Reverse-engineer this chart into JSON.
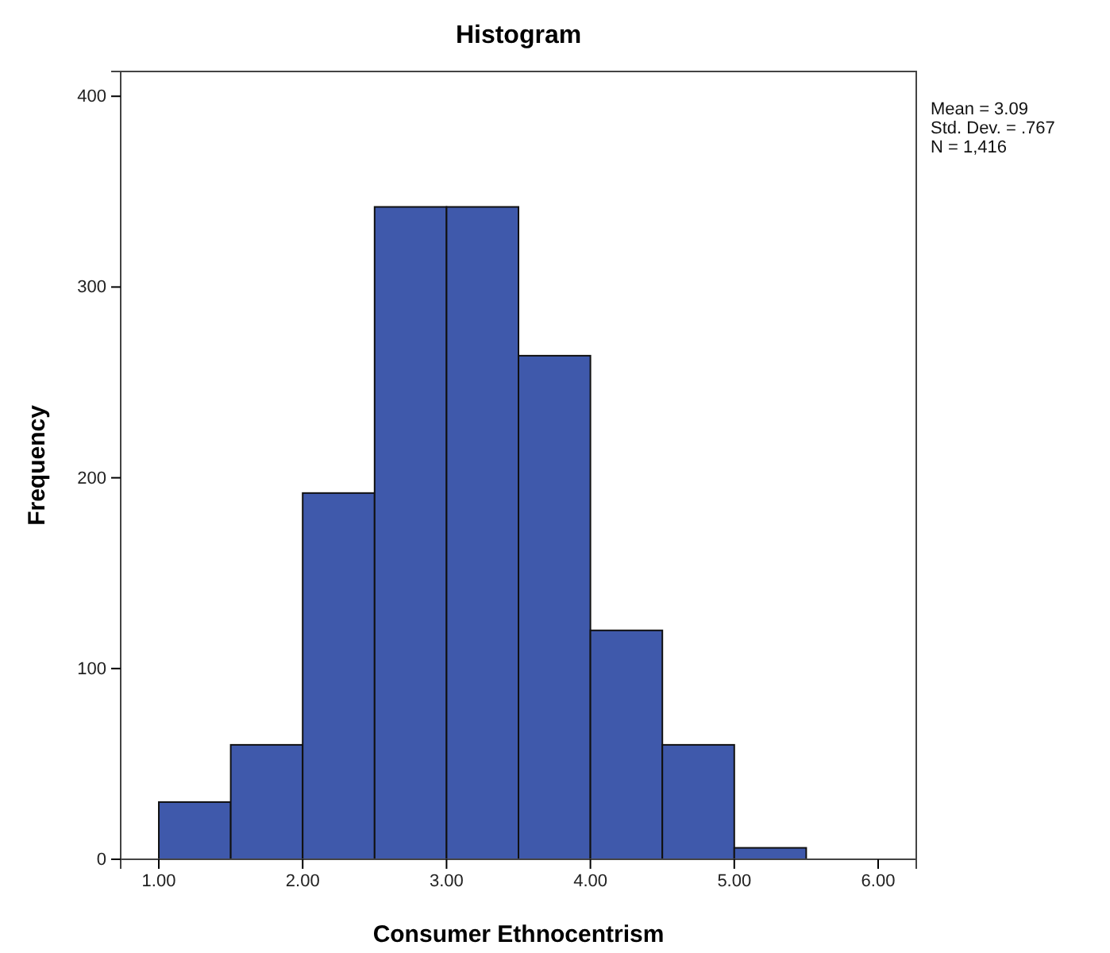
{
  "chart_data": {
    "type": "histogram",
    "title": "Histogram",
    "xlabel": "Consumer Ethnocentrism",
    "ylabel": "Frequency",
    "bins": [
      1.0,
      1.5,
      2.0,
      2.5,
      3.0,
      3.5,
      4.0,
      4.5,
      5.0,
      5.5
    ],
    "values": [
      30,
      60,
      192,
      342,
      342,
      264,
      120,
      60,
      6
    ],
    "color": "#3f59ab",
    "xlim": [
      0.735,
      6.265
    ],
    "xticks": [
      {
        "value": 1,
        "label": "1.00"
      },
      {
        "value": 2,
        "label": "2.00"
      },
      {
        "value": 3,
        "label": "3.00"
      },
      {
        "value": 4,
        "label": "4.00"
      },
      {
        "value": 5,
        "label": "5.00"
      },
      {
        "value": 6,
        "label": "6.00"
      }
    ],
    "ylim": [
      0,
      413
    ],
    "yticks": [
      0,
      100,
      200,
      300,
      400
    ],
    "grid": false,
    "annotations": [
      "Mean = 3.09",
      "Std. Dev. = .767",
      "N = 1,416"
    ]
  }
}
